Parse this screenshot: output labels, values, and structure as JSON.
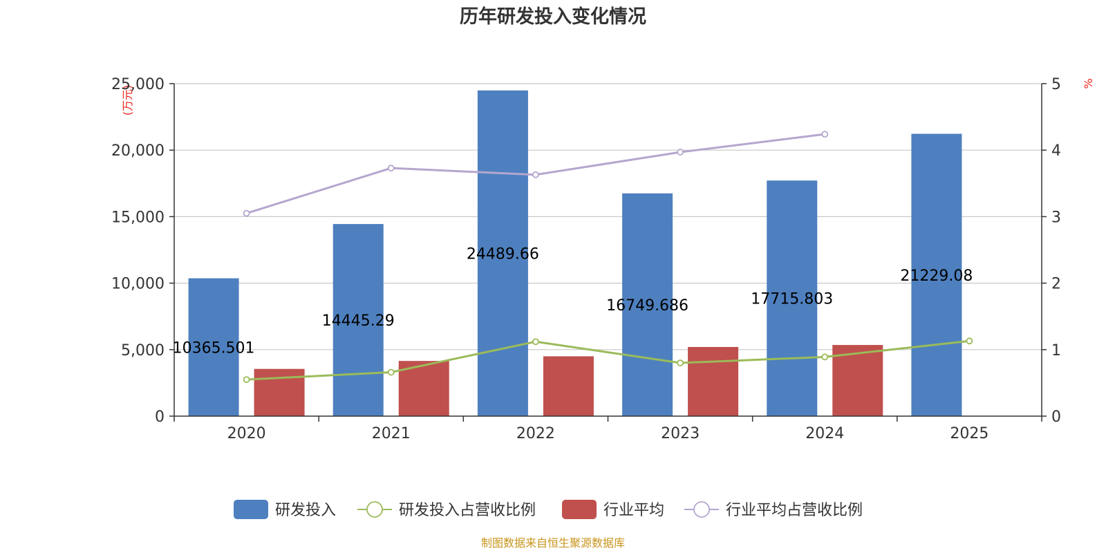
{
  "chart_data": {
    "type": "bar",
    "title": "历年研发投入变化情况",
    "categories": [
      "2020",
      "2021",
      "2022",
      "2023",
      "2024",
      "2025"
    ],
    "y_left": {
      "unit": "(万元)",
      "ylim": [
        0,
        25000
      ],
      "ticks": [
        "0",
        "5,000",
        "10,000",
        "15,000",
        "20,000",
        "25,000"
      ],
      "tick_values": [
        0,
        5000,
        10000,
        15000,
        20000,
        25000
      ]
    },
    "y_right": {
      "unit": "%",
      "ylim": [
        0,
        5
      ],
      "ticks": [
        "0",
        "1",
        "2",
        "3",
        "4",
        "5"
      ],
      "tick_values": [
        0,
        1,
        2,
        3,
        4,
        5
      ]
    },
    "series": [
      {
        "name": "研发投入",
        "kind": "bar",
        "axis": "left",
        "color": "#4e80bf",
        "values": [
          10365.501,
          14445.29,
          24489.66,
          16749.686,
          17715.803,
          21229.08
        ],
        "labels": [
          "10365.501",
          "14445.29",
          "24489.66",
          "16749.686",
          "17715.803",
          "21229.08"
        ]
      },
      {
        "name": "研发投入占营收比例",
        "kind": "line",
        "axis": "right",
        "color": "#9bbb59",
        "values": [
          0.55,
          0.66,
          1.12,
          0.8,
          0.89,
          1.13
        ]
      },
      {
        "name": "行业平均",
        "kind": "bar",
        "axis": "left",
        "color": "#c0504d",
        "values": [
          3550,
          4150,
          4500,
          5200,
          5350,
          null
        ]
      },
      {
        "name": "行业平均占营收比例",
        "kind": "line",
        "axis": "right",
        "color": "#b5a6cf",
        "values": [
          3.05,
          3.73,
          3.63,
          3.97,
          4.24,
          null
        ]
      }
    ],
    "grid": true,
    "legend_position": "bottom"
  },
  "source_note": "制图数据来自恒生聚源数据库"
}
